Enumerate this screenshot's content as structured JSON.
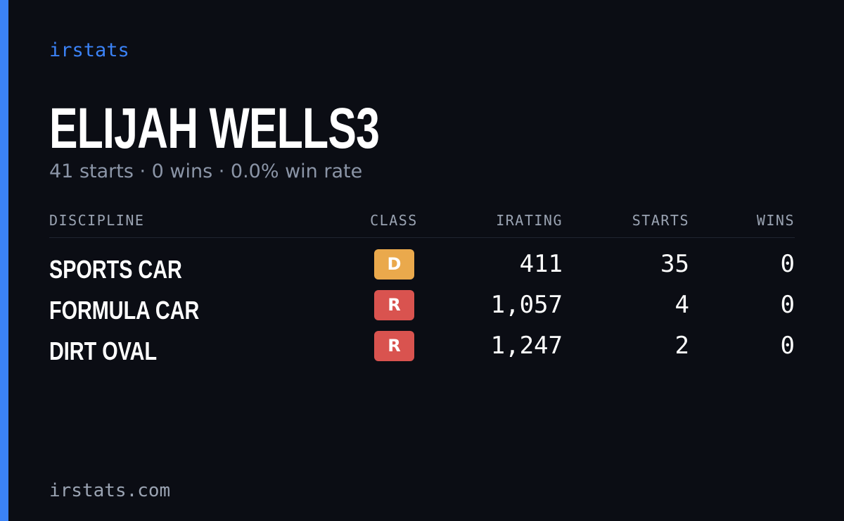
{
  "brand": "irstats",
  "driver": {
    "name": "ELIJAH WELLS3",
    "summary": "41 starts · 0 wins · 0.0% win rate"
  },
  "table": {
    "headers": [
      "DISCIPLINE",
      "CLASS",
      "IRATING",
      "STARTS",
      "WINS"
    ],
    "rows": [
      {
        "discipline": "SPORTS CAR",
        "class": "D",
        "class_color": "#eaa94c",
        "irating": "411",
        "starts": "35",
        "wins": "0"
      },
      {
        "discipline": "FORMULA CAR",
        "class": "R",
        "class_color": "#d9534f",
        "irating": "1,057",
        "starts": "4",
        "wins": "0"
      },
      {
        "discipline": "DIRT OVAL",
        "class": "R",
        "class_color": "#d9534f",
        "irating": "1,247",
        "starts": "2",
        "wins": "0"
      }
    ]
  },
  "footer": "irstats.com"
}
